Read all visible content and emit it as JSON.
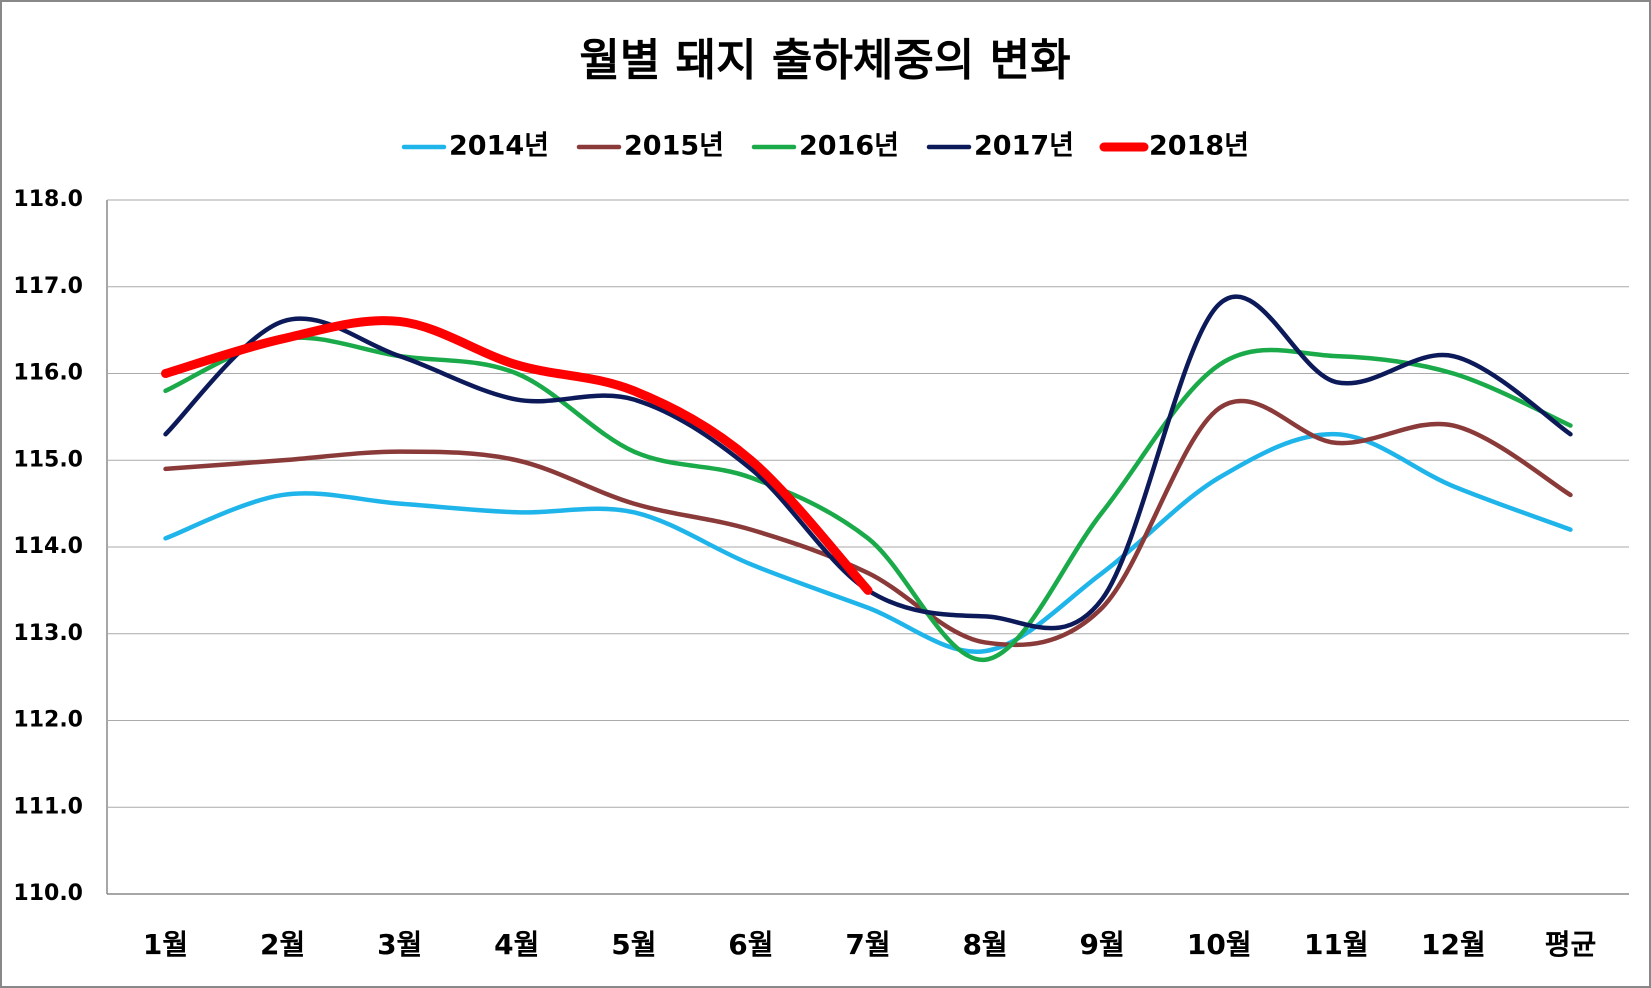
{
  "chart_data": {
    "type": "line",
    "title": "월별 돼지 출하체중의 변화",
    "categories": [
      "1월",
      "2월",
      "3월",
      "4월",
      "5월",
      "6월",
      "7월",
      "8월",
      "9월",
      "10월",
      "11월",
      "12월",
      "평균"
    ],
    "series": [
      {
        "name": "2014년",
        "color": "#1fb5ea",
        "values": [
          114.1,
          114.6,
          114.5,
          114.4,
          114.4,
          113.8,
          113.3,
          112.8,
          113.7,
          114.8,
          115.3,
          114.7,
          114.2
        ]
      },
      {
        "name": "2015년",
        "color": "#8b3a3a",
        "values": [
          114.9,
          115.0,
          115.1,
          115.0,
          114.5,
          114.2,
          113.7,
          112.9,
          113.3,
          115.6,
          115.2,
          115.4,
          114.6
        ]
      },
      {
        "name": "2016년",
        "color": "#1aaa4a",
        "values": [
          115.8,
          116.4,
          116.2,
          116.0,
          115.1,
          114.8,
          114.1,
          112.7,
          114.4,
          116.1,
          116.2,
          116.0,
          115.4
        ]
      },
      {
        "name": "2017년",
        "color": "#0c1a5a",
        "values": [
          115.3,
          116.6,
          116.2,
          115.7,
          115.7,
          114.9,
          113.5,
          113.2,
          113.4,
          116.8,
          115.9,
          116.2,
          115.3
        ]
      },
      {
        "name": "2018년",
        "color": "#ff0000",
        "values": [
          116.0,
          116.4,
          116.6,
          116.1,
          115.8,
          115.0,
          113.5,
          null,
          null,
          null,
          null,
          null,
          null
        ]
      }
    ],
    "ylim": [
      110,
      118
    ],
    "yticks": [
      {
        "value": 110,
        "label": "110.0"
      },
      {
        "value": 111,
        "label": "111.0"
      },
      {
        "value": 112,
        "label": "112.0"
      },
      {
        "value": 113,
        "label": "113.0"
      },
      {
        "value": 114,
        "label": "114.0"
      },
      {
        "value": 115,
        "label": "115.0"
      },
      {
        "value": 116,
        "label": "116.0"
      },
      {
        "value": 117,
        "label": "117.0"
      },
      {
        "value": 118,
        "label": "118.0"
      }
    ],
    "grid": true,
    "legend": "top"
  }
}
